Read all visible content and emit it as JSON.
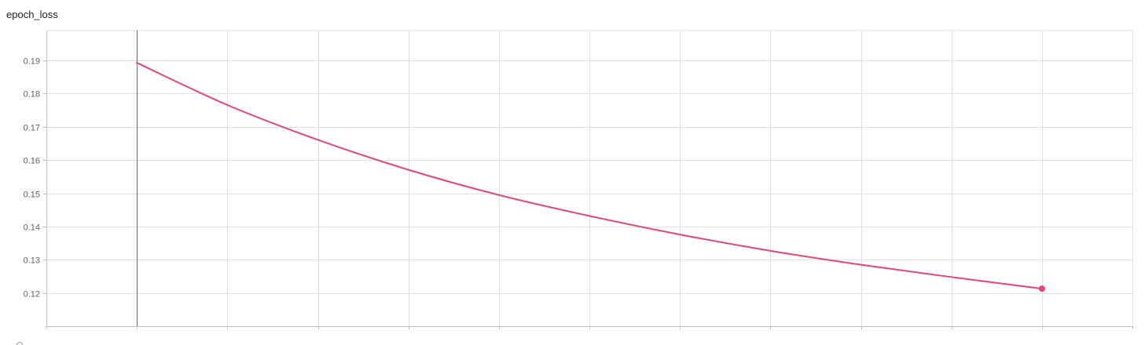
{
  "card": {
    "title": "epoch_loss"
  },
  "chart_data": {
    "type": "line",
    "title": "epoch_loss",
    "xlabel": "",
    "ylabel": "",
    "x": [
      0,
      1,
      2,
      3,
      4,
      5,
      6,
      7,
      8,
      9,
      10
    ],
    "series": [
      {
        "color": "#e8417e",
        "values": [
          0.1893,
          0.1766,
          0.1661,
          0.1571,
          0.1495,
          0.1432,
          0.1376,
          0.1327,
          0.1285,
          0.1248,
          0.1213
        ]
      }
    ],
    "xlim": [
      -1,
      11
    ],
    "ylim": [
      0.11,
      0.199
    ],
    "yticks": [
      0.12,
      0.13,
      0.14,
      0.15,
      0.16,
      0.17,
      0.18,
      0.19
    ],
    "ytick_labels": [
      "0.12",
      "0.13",
      "0.14",
      "0.15",
      "0.16",
      "0.17",
      "0.18",
      "0.19"
    ],
    "x_gridlines": [
      0,
      1,
      2,
      3,
      4,
      5,
      6,
      7,
      8,
      9,
      10,
      11
    ],
    "grid": true,
    "legend": "none"
  }
}
